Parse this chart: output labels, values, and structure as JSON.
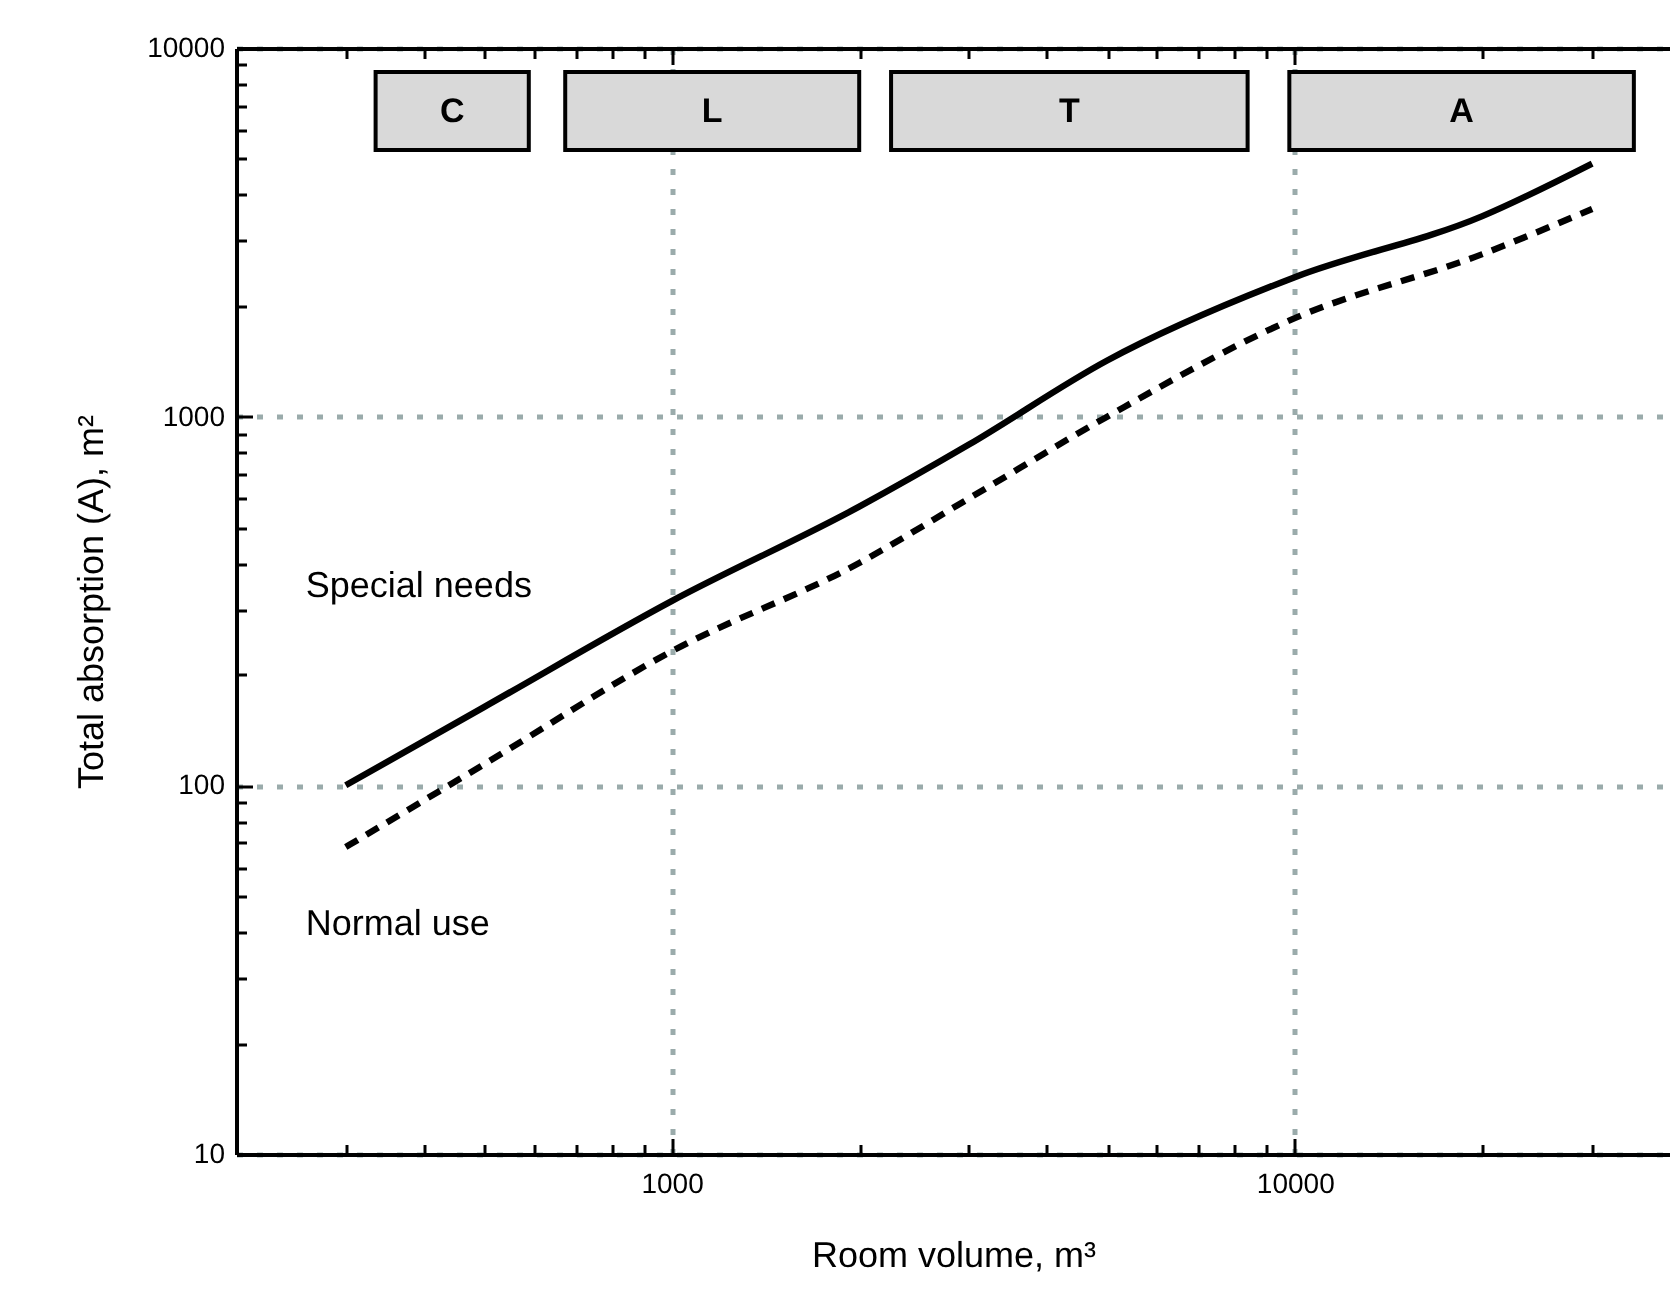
{
  "chart_data": {
    "type": "line",
    "xlabel": "Room volume, m³",
    "ylabel": "Total absorption (A), m²",
    "log": "xy",
    "grid": true,
    "legend": false,
    "xlim": [
      200,
      40000
    ],
    "xticks": [
      {
        "value": 300,
        "label": null
      },
      {
        "value": 400,
        "label": null
      },
      {
        "value": 500,
        "label": null
      },
      {
        "value": 600,
        "label": null
      },
      {
        "value": 700,
        "label": null
      },
      {
        "value": 800,
        "label": null
      },
      {
        "value": 900,
        "label": null
      },
      1000,
      {
        "value": 2000,
        "label": null
      },
      {
        "value": 3000,
        "label": null
      },
      {
        "value": 4000,
        "label": null
      },
      {
        "value": 5000,
        "label": null
      },
      {
        "value": 6000,
        "label": null
      },
      {
        "value": 7000,
        "label": null
      },
      {
        "value": 8000,
        "label": null
      },
      {
        "value": 9000,
        "label": null
      },
      10000,
      {
        "value": 20000,
        "label": null
      },
      {
        "value": 30000,
        "label": null
      }
    ],
    "ylim": [
      10,
      10000
    ],
    "yticks": [
      10,
      {
        "value": 20,
        "label": null
      },
      {
        "value": 30,
        "label": null
      },
      {
        "value": 40,
        "label": null
      },
      {
        "value": 50,
        "label": null
      },
      {
        "value": 60,
        "label": null
      },
      {
        "value": 70,
        "label": null
      },
      {
        "value": 80,
        "label": null
      },
      {
        "value": 90,
        "label": null
      },
      100,
      {
        "value": 200,
        "label": null
      },
      {
        "value": 300,
        "label": null
      },
      {
        "value": 400,
        "label": null
      },
      {
        "value": 500,
        "label": null
      },
      {
        "value": 600,
        "label": null
      },
      {
        "value": 700,
        "label": null
      },
      {
        "value": 800,
        "label": null
      },
      {
        "value": 900,
        "label": null
      },
      1000,
      {
        "value": 2000,
        "label": null
      },
      {
        "value": 3000,
        "label": null
      },
      {
        "value": 4000,
        "label": null
      },
      {
        "value": 5000,
        "label": null
      },
      {
        "value": 6000,
        "label": null
      },
      {
        "value": 7000,
        "label": null
      },
      {
        "value": 8000,
        "label": null
      },
      {
        "value": 9000,
        "label": null
      },
      10000
    ],
    "x": [
      300,
      500,
      1000,
      2000,
      3000,
      5000,
      10000,
      20000,
      30000
    ],
    "series": [
      {
        "name": "Special needs",
        "color": "#000000",
        "line_style": "solid",
        "values": [
          100,
          163,
          316,
          570,
          840,
          1420,
          2390,
          3500,
          4860
        ]
      },
      {
        "name": "Normal use",
        "color": "#000000",
        "line_style": "dashed",
        "values": [
          68,
          114,
          231,
          401,
          600,
          1000,
          1850,
          2760,
          3660
        ]
      }
    ],
    "bands": [
      {
        "axis": "x",
        "from": 335,
        "to": 590,
        "label": "C",
        "color": "#d9d9d9"
      },
      {
        "axis": "x",
        "from": 675,
        "to": 2000,
        "label": "L",
        "color": "#d9d9d9"
      },
      {
        "axis": "x",
        "from": 2250,
        "to": 8400,
        "label": "T",
        "color": "#d9d9d9"
      },
      {
        "axis": "x",
        "from": 9800,
        "to": 35000,
        "label": "A",
        "color": "#d9d9d9"
      }
    ]
  }
}
